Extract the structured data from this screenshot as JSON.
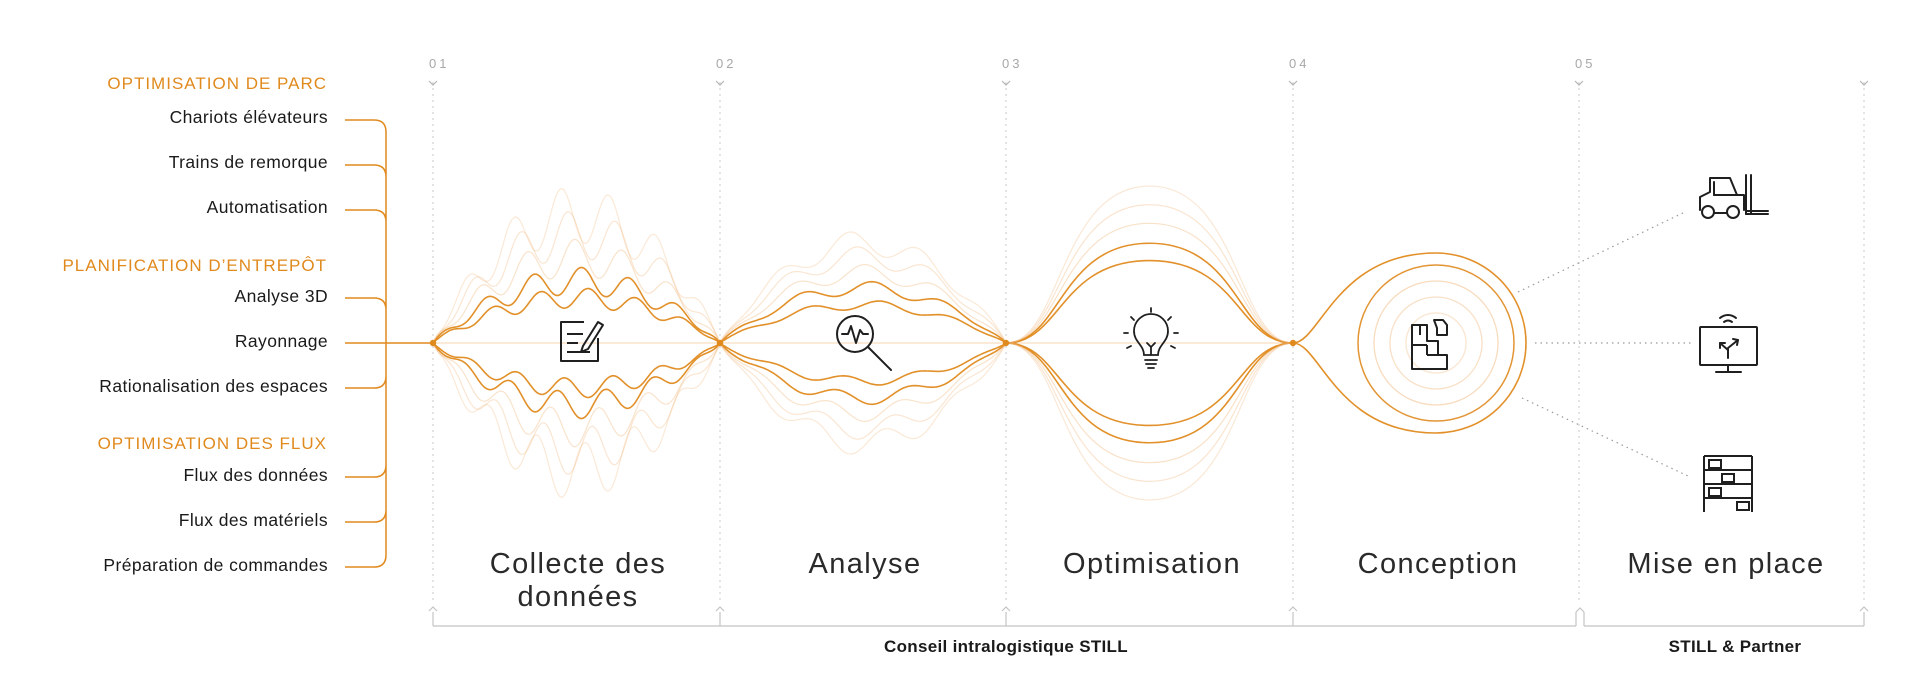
{
  "categories": [
    {
      "title": "OPTIMISATION DE PARC",
      "items": [
        "Chariots élévateurs",
        "Trains de remorque",
        "Automatisation"
      ]
    },
    {
      "title": "PLANIFICATION D’ENTREPÔT",
      "items": [
        "Analyse 3D",
        "Rayonnage",
        "Rationalisation des espaces"
      ]
    },
    {
      "title": "OPTIMISATION DES FLUX",
      "items": [
        "Flux des données",
        "Flux des matériels",
        "Préparation de commandes"
      ]
    }
  ],
  "steps": [
    {
      "number": "01",
      "label": "Collecte des données",
      "icon": "document-edit-icon"
    },
    {
      "number": "02",
      "label": "Analyse",
      "icon": "magnifier-pulse-icon"
    },
    {
      "number": "03",
      "label": "Optimisation",
      "icon": "lightbulb-icon"
    },
    {
      "number": "04",
      "label": "Conception",
      "icon": "floor-plan-icon"
    },
    {
      "number": "05",
      "label": "Mise en place",
      "icon": "forklift-icon"
    }
  ],
  "outputs": [
    {
      "icon": "forklift-icon"
    },
    {
      "icon": "monitor-route-icon"
    },
    {
      "icon": "shelving-rack-icon"
    }
  ],
  "groups": [
    {
      "label": "Conseil intralogistique STILL"
    },
    {
      "label": "STILL & Partner"
    }
  ],
  "colors": {
    "accent": "#E08A1E",
    "accent_light": "#F4C99B",
    "grid": "#c9c9c9",
    "icon": "#1f1f1f"
  }
}
